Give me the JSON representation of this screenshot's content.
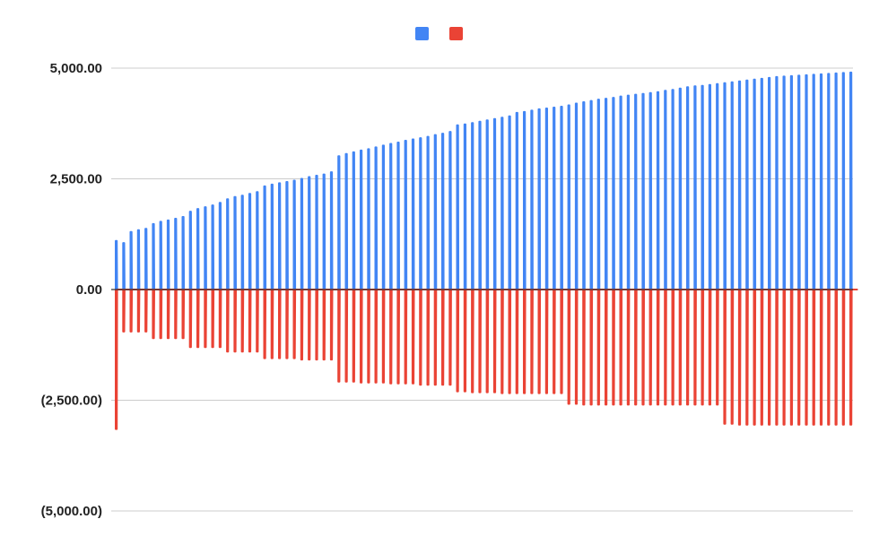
{
  "chart_data": {
    "type": "line",
    "title": "",
    "xlabel": "",
    "ylabel": "",
    "ylim": [
      -5000,
      5000
    ],
    "yticks": [
      5000,
      2500,
      0,
      -2500,
      -5000
    ],
    "ytick_labels": [
      "5,000.00",
      "2,500.00",
      "0.00",
      "(2,500.00)",
      "(5,000.00)"
    ],
    "grid": true,
    "legend_position": "top-center",
    "colors": {
      "series1": "#4285f4",
      "series2": "#ea4335",
      "grid": "#cccccc",
      "zero_line": "#333333"
    },
    "series": [
      {
        "legend_label": "",
        "color": "#4285f4",
        "values": [
          1100,
          1050,
          1300,
          1340,
          1370,
          1480,
          1530,
          1560,
          1600,
          1640,
          1760,
          1820,
          1860,
          1900,
          1960,
          2040,
          2090,
          2120,
          2160,
          2200,
          2330,
          2370,
          2400,
          2430,
          2460,
          2500,
          2540,
          2570,
          2600,
          2650,
          3010,
          3060,
          3100,
          3140,
          3170,
          3210,
          3250,
          3290,
          3320,
          3360,
          3390,
          3420,
          3450,
          3490,
          3520,
          3560,
          3710,
          3730,
          3760,
          3790,
          3820,
          3850,
          3880,
          3910,
          3990,
          4010,
          4040,
          4070,
          4090,
          4110,
          4130,
          4160,
          4200,
          4230,
          4260,
          4290,
          4310,
          4330,
          4360,
          4380,
          4400,
          4420,
          4440,
          4460,
          4490,
          4510,
          4540,
          4570,
          4590,
          4600,
          4620,
          4640,
          4660,
          4680,
          4700,
          4720,
          4740,
          4760,
          4780,
          4800,
          4810,
          4820,
          4830,
          4840,
          4850,
          4860,
          4870,
          4880,
          4890,
          4900
        ]
      },
      {
        "legend_label": "",
        "color": "#ea4335",
        "values": [
          -3150,
          -950,
          -950,
          -950,
          -950,
          -1100,
          -1100,
          -1100,
          -1100,
          -1100,
          -1300,
          -1300,
          -1300,
          -1300,
          -1300,
          -1400,
          -1400,
          -1400,
          -1400,
          -1400,
          -1550,
          -1550,
          -1550,
          -1550,
          -1550,
          -1580,
          -1580,
          -1580,
          -1580,
          -1580,
          -2080,
          -2080,
          -2080,
          -2100,
          -2100,
          -2100,
          -2100,
          -2120,
          -2120,
          -2120,
          -2120,
          -2150,
          -2150,
          -2150,
          -2150,
          -2150,
          -2300,
          -2300,
          -2320,
          -2320,
          -2320,
          -2320,
          -2340,
          -2340,
          -2340,
          -2340,
          -2340,
          -2340,
          -2340,
          -2340,
          -2340,
          -2580,
          -2580,
          -2600,
          -2600,
          -2600,
          -2600,
          -2600,
          -2600,
          -2600,
          -2600,
          -2600,
          -2600,
          -2600,
          -2600,
          -2600,
          -2600,
          -2600,
          -2600,
          -2600,
          -2600,
          -2600,
          -3030,
          -3030,
          -3050,
          -3050,
          -3050,
          -3050,
          -3050,
          -3050,
          -3050,
          -3050,
          -3050,
          -3050,
          -3050,
          -3050,
          -3050,
          -3050,
          -3050,
          -3050
        ]
      }
    ]
  }
}
